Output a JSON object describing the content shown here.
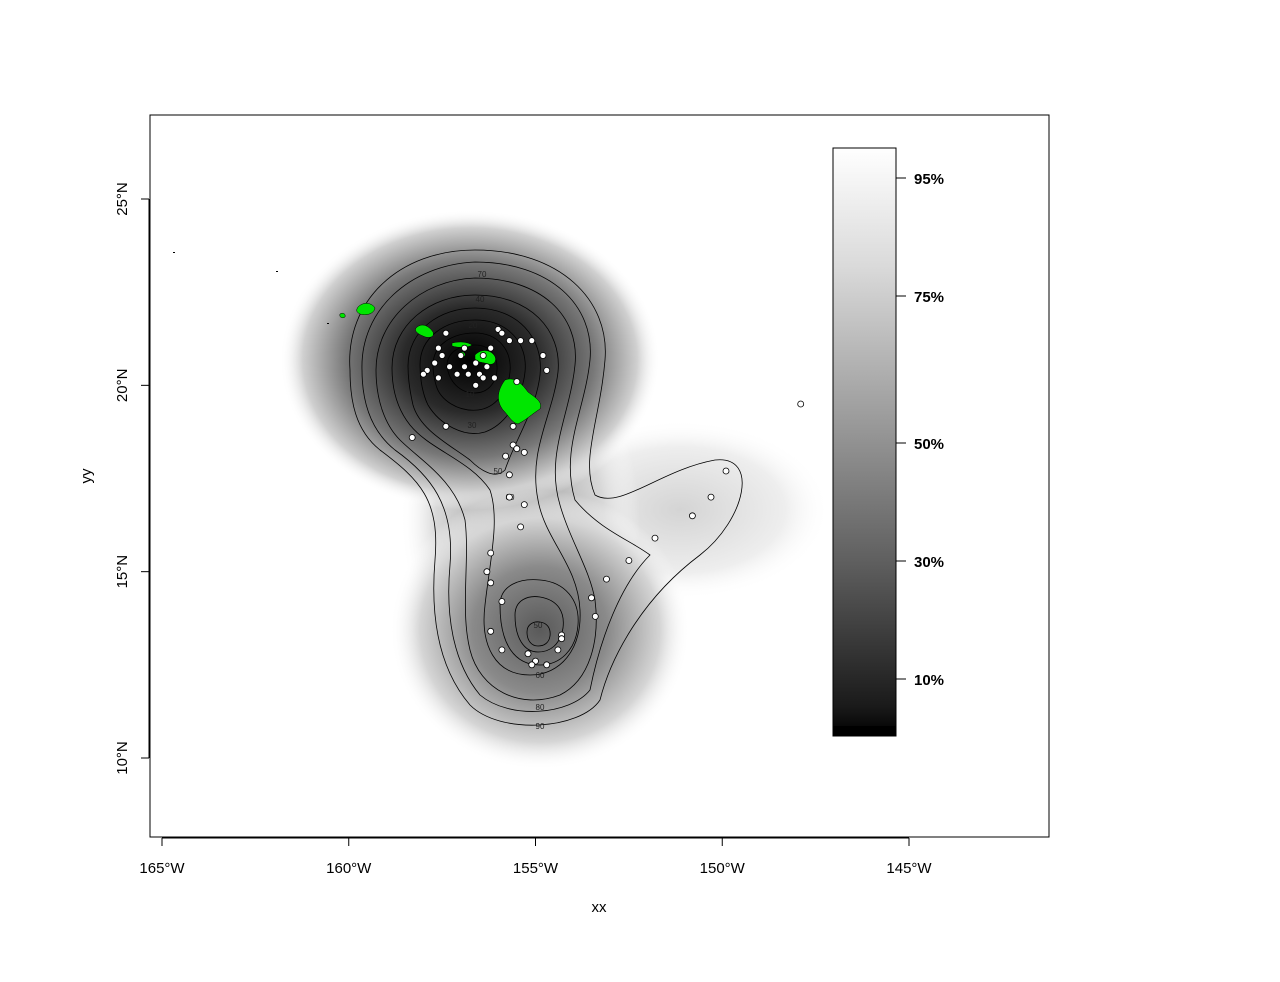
{
  "chart_data": {
    "type": "heatmap",
    "subtype": "kernel density map with percentage volume contours",
    "xlabel": "xx",
    "ylabel": "yy",
    "xlim": [
      -165.5,
      -141.5
    ],
    "ylim": [
      7.9,
      27.3
    ],
    "x_ticks": [
      {
        "value": -165,
        "label": "165°W"
      },
      {
        "value": -160,
        "label": "160°W"
      },
      {
        "value": -155,
        "label": "155°W"
      },
      {
        "value": -150,
        "label": "150°W"
      },
      {
        "value": -145,
        "label": "145°W"
      }
    ],
    "y_ticks": [
      {
        "value": 10,
        "label": "10°N"
      },
      {
        "value": 15,
        "label": "15°N"
      },
      {
        "value": 20,
        "label": "20°N"
      },
      {
        "value": 25,
        "label": "25°N"
      }
    ],
    "colorscale": "grayscale, black (core) to white (outer)",
    "legend": {
      "placement": "right",
      "ticks": [
        {
          "percent": 10,
          "label": "10%"
        },
        {
          "percent": 30,
          "label": "30%"
        },
        {
          "percent": 50,
          "label": "50%"
        },
        {
          "percent": 75,
          "label": "75%"
        },
        {
          "percent": 95,
          "label": "95%"
        }
      ]
    },
    "contour_labels": [
      "70",
      "40",
      "20",
      "10",
      "30",
      "50",
      "60",
      "50",
      "60",
      "80",
      "90"
    ],
    "points": [
      [
        -157.4,
        21.4
      ],
      [
        -157.6,
        21.0
      ],
      [
        -157.5,
        20.8
      ],
      [
        -157.7,
        20.6
      ],
      [
        -157.9,
        20.4
      ],
      [
        -157.3,
        20.5
      ],
      [
        -157.0,
        20.8
      ],
      [
        -156.9,
        20.5
      ],
      [
        -156.8,
        20.3
      ],
      [
        -156.6,
        20.6
      ],
      [
        -156.5,
        20.3
      ],
      [
        -156.4,
        20.8
      ],
      [
        -156.3,
        20.5
      ],
      [
        -156.2,
        21.0
      ],
      [
        -156.0,
        21.5
      ],
      [
        -155.9,
        21.4
      ],
      [
        -155.7,
        21.2
      ],
      [
        -155.4,
        21.2
      ],
      [
        -155.1,
        21.2
      ],
      [
        -156.1,
        20.2
      ],
      [
        -157.1,
        20.3
      ],
      [
        -156.6,
        20.0
      ],
      [
        -156.4,
        20.2
      ],
      [
        -157.6,
        20.2
      ],
      [
        -158.0,
        20.3
      ],
      [
        -155.5,
        20.1
      ],
      [
        -154.8,
        20.8
      ],
      [
        -154.7,
        20.4
      ],
      [
        -156.9,
        21.0
      ],
      [
        -155.6,
        18.9
      ],
      [
        -157.4,
        18.9
      ],
      [
        -158.3,
        18.6
      ],
      [
        -155.6,
        18.4
      ],
      [
        -155.5,
        18.3
      ],
      [
        -155.8,
        18.1
      ],
      [
        -155.3,
        18.2
      ],
      [
        -155.7,
        17.6
      ],
      [
        -155.7,
        17.0
      ],
      [
        -155.3,
        16.8
      ],
      [
        -155.4,
        16.2
      ],
      [
        -156.2,
        15.5
      ],
      [
        -156.3,
        15.0
      ],
      [
        -156.2,
        14.7
      ],
      [
        -155.9,
        14.2
      ],
      [
        -156.2,
        13.4
      ],
      [
        -155.9,
        12.9
      ],
      [
        -155.2,
        12.8
      ],
      [
        -155.0,
        12.6
      ],
      [
        -155.1,
        12.5
      ],
      [
        -154.7,
        12.5
      ],
      [
        -154.4,
        12.9
      ],
      [
        -154.3,
        13.3
      ],
      [
        -154.3,
        13.2
      ],
      [
        -153.5,
        14.3
      ],
      [
        -153.4,
        13.8
      ],
      [
        -153.1,
        14.8
      ],
      [
        -152.5,
        15.3
      ],
      [
        -151.8,
        15.9
      ],
      [
        -150.8,
        16.5
      ],
      [
        -150.3,
        17.0
      ],
      [
        -149.9,
        17.7
      ],
      [
        -147.9,
        19.5
      ]
    ],
    "islands": [
      {
        "name": "",
        "color": "#00e600"
      }
    ]
  },
  "colors": {
    "island_fill": "#00e600",
    "point_fill": "#ffffff",
    "point_stroke": "#000000",
    "contour_stroke": "#000000"
  }
}
